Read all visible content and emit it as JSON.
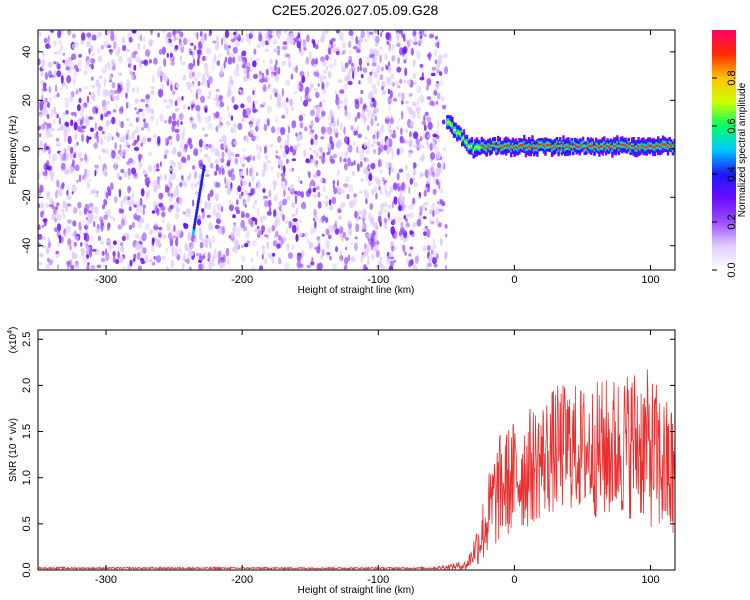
{
  "title": "C2E5.2026.027.05.09.G28",
  "chart_data": [
    {
      "type": "heatmap",
      "xlabel": "Height of straight line (km)",
      "ylabel": "Frequency (Hz)",
      "xlim": [
        -350,
        118
      ],
      "ylim": [
        -50,
        49
      ],
      "x_ticks": [
        "-300",
        "-200",
        "-100",
        "0",
        "100"
      ],
      "x_tick_values": [
        -300,
        -200,
        -100,
        0,
        100
      ],
      "y_ticks": [
        "40",
        "20",
        "0",
        "-20",
        "-40"
      ],
      "y_tick_values": [
        40,
        20,
        0,
        -20,
        -40
      ],
      "noise_region_x": [
        -350,
        -50
      ],
      "signal_region_x": [
        -50,
        118
      ],
      "signal_frequency_hz": 1,
      "colorbar": {
        "label": "Normalized spectral amplitude",
        "range": [
          0.0,
          1.0
        ],
        "ticks": [
          "0.0",
          "0.2",
          "0.4",
          "0.6",
          "0.8"
        ],
        "tick_values": [
          0.0,
          0.2,
          0.4,
          0.6,
          0.8
        ],
        "colors": [
          "#ffffff",
          "#e0ccff",
          "#9b4dff",
          "#6a0dff",
          "#1a1aff",
          "#00c8ff",
          "#00ff66",
          "#ccff00",
          "#ffc400",
          "#ff2a00",
          "#ff0066"
        ]
      }
    },
    {
      "type": "line",
      "xlabel": "Height of straight line (km)",
      "ylabel": "SNR (10 * v/v)",
      "y_multiplier": "(x10",
      "y_multiplier_exp": "4",
      "y_multiplier_close": ")",
      "xlim": [
        -350,
        118
      ],
      "ylim": [
        0,
        2.6
      ],
      "x_ticks": [
        "-300",
        "-200",
        "-100",
        "0",
        "100"
      ],
      "x_tick_values": [
        -300,
        -200,
        -100,
        0,
        100
      ],
      "y_ticks": [
        "0.0",
        "0.5",
        "1.0",
        "1.5",
        "2.0",
        "2.5"
      ],
      "y_tick_values": [
        0.0,
        0.5,
        1.0,
        1.5,
        2.0,
        2.5
      ],
      "series": [
        {
          "name": "SNR",
          "color": "#e83030",
          "x": [
            -350,
            -300,
            -250,
            -200,
            -150,
            -100,
            -60,
            -35,
            -30,
            -25,
            -20,
            -15,
            -10,
            -5,
            0,
            10,
            20,
            30,
            40,
            50,
            60,
            70,
            80,
            90,
            100,
            110,
            118
          ],
          "values": [
            0.02,
            0.02,
            0.02,
            0.02,
            0.02,
            0.02,
            0.02,
            0.05,
            0.2,
            0.35,
            0.55,
            0.75,
            0.9,
            0.95,
            1.0,
            1.1,
            1.2,
            1.3,
            1.35,
            1.3,
            1.3,
            1.3,
            1.35,
            1.4,
            1.3,
            1.1,
            1.0
          ],
          "noise_amplitude": [
            0.01,
            0.01,
            0.01,
            0.01,
            0.01,
            0.01,
            0.01,
            0.05,
            0.15,
            0.3,
            0.45,
            0.55,
            0.6,
            0.6,
            0.65,
            0.65,
            0.65,
            0.7,
            0.7,
            0.7,
            0.75,
            0.8,
            0.8,
            0.85,
            0.85,
            0.8,
            0.8
          ]
        }
      ]
    }
  ]
}
